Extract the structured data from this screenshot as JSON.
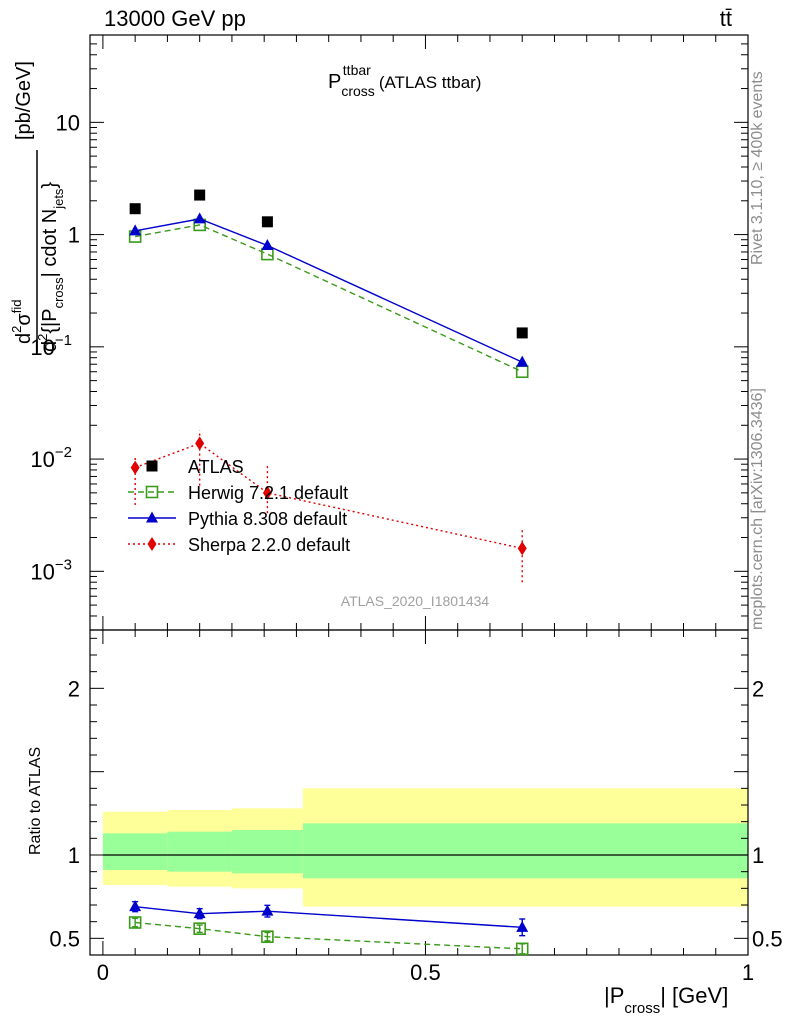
{
  "header": {
    "energy_label": "13000 GeV pp",
    "process_label": "tt̄"
  },
  "side": {
    "rivet_label": "Rivet 3.1.10, ≥ 400k events",
    "site_label": "mcplots.cern.ch [arXiv:1306.3436]"
  },
  "chart_data": [
    {
      "type": "scatter",
      "title": "P",
      "title_sup": "ttbar",
      "title_sub": "cross",
      "title_suffix": "(ATLAS ttbar)",
      "watermark": "ATLAS_2020_I1801434",
      "ylabel": {
        "num_d": "d",
        "num_sup": "2",
        "num_sigma": "σ",
        "num_sigma_sup": "fid",
        "den_d": "d",
        "den_sup": "2",
        "den_text": "{|P",
        "den_sub": "cross",
        "den_mid": "| cdot N",
        "den_sub2": "jets",
        "den_end": "}",
        "unit": "[pb/GeV]"
      },
      "yscale": "log",
      "ylim": [
        0.0003,
        60
      ],
      "xlim": [
        -0.02,
        1.0
      ],
      "ytick_labels": [
        {
          "base": "10",
          "exp": "−3",
          "value": 0.001
        },
        {
          "base": "10",
          "exp": "−2",
          "value": 0.01
        },
        {
          "base": "10",
          "exp": "−1",
          "value": 0.1
        },
        {
          "base": "1",
          "exp": "",
          "value": 1
        },
        {
          "base": "10",
          "exp": "",
          "value": 10
        }
      ],
      "legend_position": "lower-left",
      "series": [
        {
          "name": "ATLAS",
          "marker": "square-filled",
          "color": "#000000",
          "x": [
            0.05,
            0.15,
            0.255,
            0.65
          ],
          "y": [
            1.7,
            2.25,
            1.3,
            0.133
          ]
        },
        {
          "name": "Herwig 7.2.1 default",
          "marker": "square-open",
          "line": "dashed",
          "color": "#3a9a1a",
          "x": [
            0.05,
            0.15,
            0.255,
            0.65
          ],
          "y": [
            0.96,
            1.22,
            0.67,
            0.06
          ]
        },
        {
          "name": "Pythia 8.308 default",
          "marker": "triangle",
          "line": "solid",
          "color": "#0000cc",
          "x": [
            0.05,
            0.15,
            0.255,
            0.65
          ],
          "y": [
            1.08,
            1.38,
            0.8,
            0.073
          ]
        },
        {
          "name": "Sherpa 2.2.0 default",
          "marker": "diamond",
          "line": "dotted",
          "color": "#e00000",
          "x": [
            0.05,
            0.15,
            0.255,
            0.65
          ],
          "y": [
            0.0084,
            0.0138,
            0.005,
            0.0016
          ],
          "err_low": [
            0.0039,
            0.0058,
            0.0033,
            0.0008
          ],
          "err_high": [
            0.0108,
            0.018,
            0.0088,
            0.0024
          ]
        }
      ]
    },
    {
      "type": "scatter",
      "ylabel": "Ratio to ATLAS",
      "xlabel_main": "|P",
      "xlabel_sub": "cross",
      "xlabel_unit": "| [GeV]",
      "xlim": [
        -0.02,
        1.0
      ],
      "ylim": [
        0.4,
        2.35
      ],
      "xtick_labels": [
        {
          "label": "0",
          "value": 0
        },
        {
          "label": "0.5",
          "value": 0.5
        },
        {
          "label": "1",
          "value": 1
        }
      ],
      "ytick_labels": [
        {
          "label": "0.5",
          "value": 0.5
        },
        {
          "label": "1",
          "value": 1
        },
        {
          "label": "2",
          "value": 2
        }
      ],
      "bands": [
        {
          "x0": 0.0,
          "x1": 0.1,
          "outer": [
            0.82,
            1.26
          ],
          "inner": [
            0.91,
            1.13
          ]
        },
        {
          "x0": 0.1,
          "x1": 0.2,
          "outer": [
            0.81,
            1.27
          ],
          "inner": [
            0.9,
            1.14
          ]
        },
        {
          "x0": 0.2,
          "x1": 0.31,
          "outer": [
            0.8,
            1.28
          ],
          "inner": [
            0.89,
            1.15
          ]
        },
        {
          "x0": 0.31,
          "x1": 1.0,
          "outer": [
            0.69,
            1.4
          ],
          "inner": [
            0.86,
            1.19
          ]
        }
      ],
      "series": [
        {
          "name": "Herwig 7.2.1 default",
          "marker": "square-open",
          "line": "dashed",
          "color": "#3a9a1a",
          "x": [
            0.05,
            0.15,
            0.255,
            0.65
          ],
          "y": [
            0.595,
            0.558,
            0.51,
            0.437
          ],
          "err": [
            0.025,
            0.022,
            0.025,
            0.03
          ]
        },
        {
          "name": "Pythia 8.308 default",
          "marker": "triangle",
          "line": "solid",
          "color": "#0000cc",
          "x": [
            0.05,
            0.15,
            0.255,
            0.65
          ],
          "y": [
            0.69,
            0.648,
            0.663,
            0.566
          ],
          "err": [
            0.03,
            0.03,
            0.035,
            0.05
          ]
        }
      ]
    }
  ]
}
